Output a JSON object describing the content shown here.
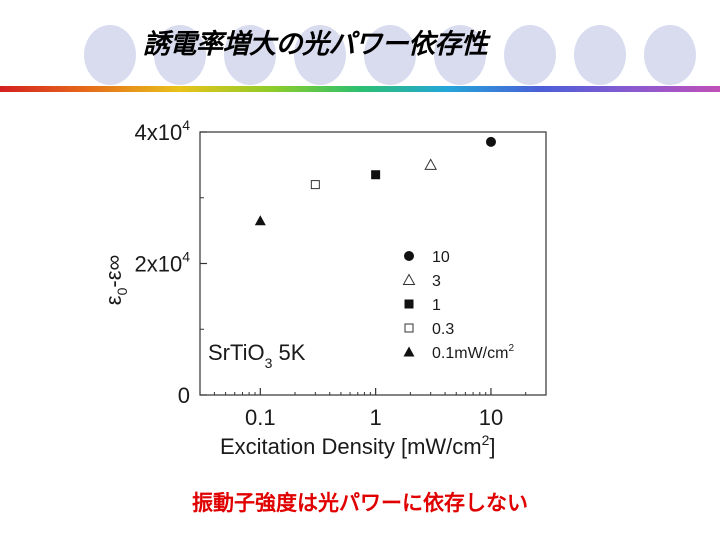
{
  "slide": {
    "title": "誘電率増大の光パワー依存性",
    "caption": "振動子強度は光パワーに依存しない"
  },
  "chart_data": {
    "type": "scatter",
    "x_scale": "log",
    "xlim": [
      0.03,
      30
    ],
    "ylim": [
      0,
      40000
    ],
    "xlabel_main": "Excitation Density [mW/cm",
    "xlabel_sup": "2",
    "xlabel_end": "]",
    "ylabel_eps": "ε",
    "ylabel_sub": "0",
    "ylabel_rest": "-ε∞",
    "sample_label": "SrTiO",
    "sample_sub": "3",
    "sample_rest": " 5K",
    "x_ticks": [
      {
        "value": 0.1,
        "label": "0.1"
      },
      {
        "value": 1,
        "label": "1"
      },
      {
        "value": 10,
        "label": "10"
      }
    ],
    "y_ticks": [
      {
        "value": 0,
        "base": "0",
        "exp": ""
      },
      {
        "value": 20000,
        "base": "2x10",
        "exp": "4"
      },
      {
        "value": 40000,
        "base": "4x10",
        "exp": "4"
      }
    ],
    "series": [
      {
        "name": "10",
        "marker": "circle-filled",
        "x": 10,
        "y": 38500
      },
      {
        "name": "3",
        "marker": "triangle-open",
        "x": 3,
        "y": 35000
      },
      {
        "name": "1",
        "marker": "square-filled",
        "x": 1,
        "y": 33500
      },
      {
        "name": "0.3",
        "marker": "square-open",
        "x": 0.3,
        "y": 32000
      },
      {
        "name": "0.1mW/cm",
        "name_sup": "2",
        "marker": "triangle-filled",
        "x": 0.1,
        "y": 26500
      }
    ],
    "grid": false,
    "legend_position": "right"
  }
}
